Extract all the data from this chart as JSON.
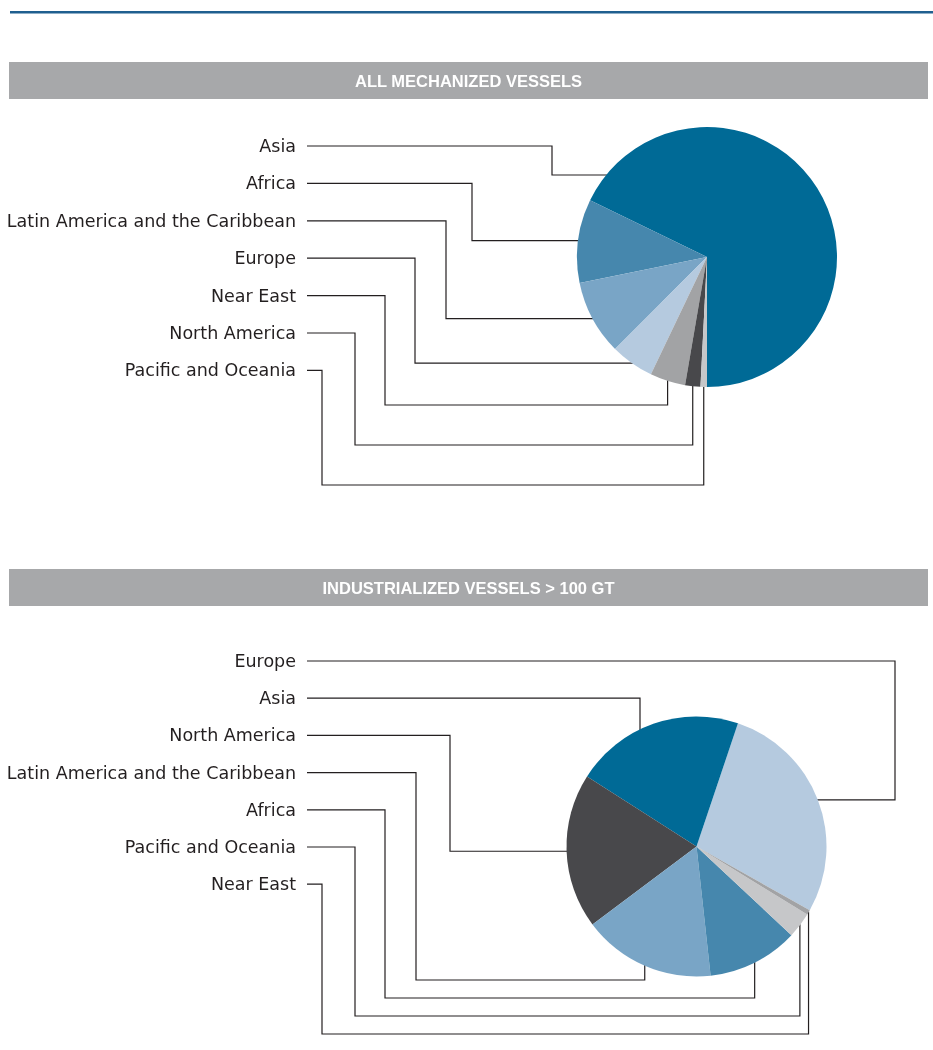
{
  "chart_data": [
    {
      "type": "pie",
      "title": "ALL MECHANIZED VESSELS",
      "categories": [
        "Asia",
        "Africa",
        "Latin America and the Caribbean",
        "Europe",
        "Near East",
        "North America",
        "Pacific and Oceania"
      ],
      "values": [
        67.8,
        10.4,
        9.3,
        5.4,
        4.4,
        1.9,
        0.8
      ],
      "colors": [
        "#006a96",
        "#4687ad",
        "#79a5c6",
        "#b5cadf",
        "#a2a3a5",
        "#48484b",
        "#c6c7c9"
      ]
    },
    {
      "type": "pie",
      "title": "INDUSTRIALIZED VESSELS > 100 GT",
      "categories": [
        "Europe",
        "Asia",
        "North America",
        "Latin America and the Caribbean",
        "Africa",
        "Pacific and Oceania",
        "Near East"
      ],
      "values": [
        28.0,
        21.1,
        19.3,
        16.5,
        11.3,
        3.2,
        0.6
      ],
      "colors": [
        "#b5cadf",
        "#006a96",
        "#48484b",
        "#79a5c6",
        "#4687ad",
        "#c6c7c9",
        "#a2a3a5"
      ]
    }
  ]
}
